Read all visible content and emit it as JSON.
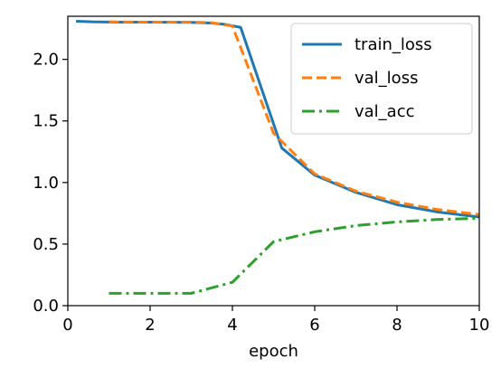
{
  "chart_data": {
    "type": "line",
    "xlabel": "epoch",
    "ylabel": "",
    "xlim": [
      0,
      10
    ],
    "ylim": [
      0,
      2.35
    ],
    "xticks": [
      "0",
      "2",
      "4",
      "6",
      "8",
      "10"
    ],
    "yticks": [
      "0.0",
      "0.5",
      "1.0",
      "1.5",
      "2.0"
    ],
    "grid": false,
    "legend_position": "top-right",
    "series": [
      {
        "name": "train_loss",
        "color": "#1f77b4",
        "style": "solid",
        "x": [
          0.2,
          0.6,
          1.0,
          1.5,
          2.0,
          2.5,
          3.0,
          3.5,
          3.8,
          4.2,
          5.2,
          6.0,
          7.0,
          8.0,
          9.0,
          10.0
        ],
        "y": [
          2.31,
          2.305,
          2.303,
          2.302,
          2.302,
          2.301,
          2.3,
          2.295,
          2.285,
          2.26,
          1.28,
          1.06,
          0.92,
          0.82,
          0.76,
          0.72
        ]
      },
      {
        "name": "val_loss",
        "color": "#ff7f0e",
        "style": "dashed",
        "x": [
          1.0,
          2.0,
          3.0,
          3.5,
          4.0,
          5.0,
          6.0,
          7.0,
          8.0,
          9.0,
          10.0
        ],
        "y": [
          2.305,
          2.303,
          2.302,
          2.298,
          2.27,
          1.4,
          1.07,
          0.93,
          0.84,
          0.78,
          0.74
        ]
      },
      {
        "name": "val_acc",
        "color": "#2ca02c",
        "style": "dashdot",
        "x": [
          1.0,
          2.0,
          3.0,
          4.0,
          5.0,
          6.0,
          7.0,
          8.0,
          9.0,
          10.0
        ],
        "y": [
          0.1,
          0.1,
          0.1,
          0.19,
          0.52,
          0.6,
          0.65,
          0.68,
          0.7,
          0.71
        ]
      }
    ]
  }
}
